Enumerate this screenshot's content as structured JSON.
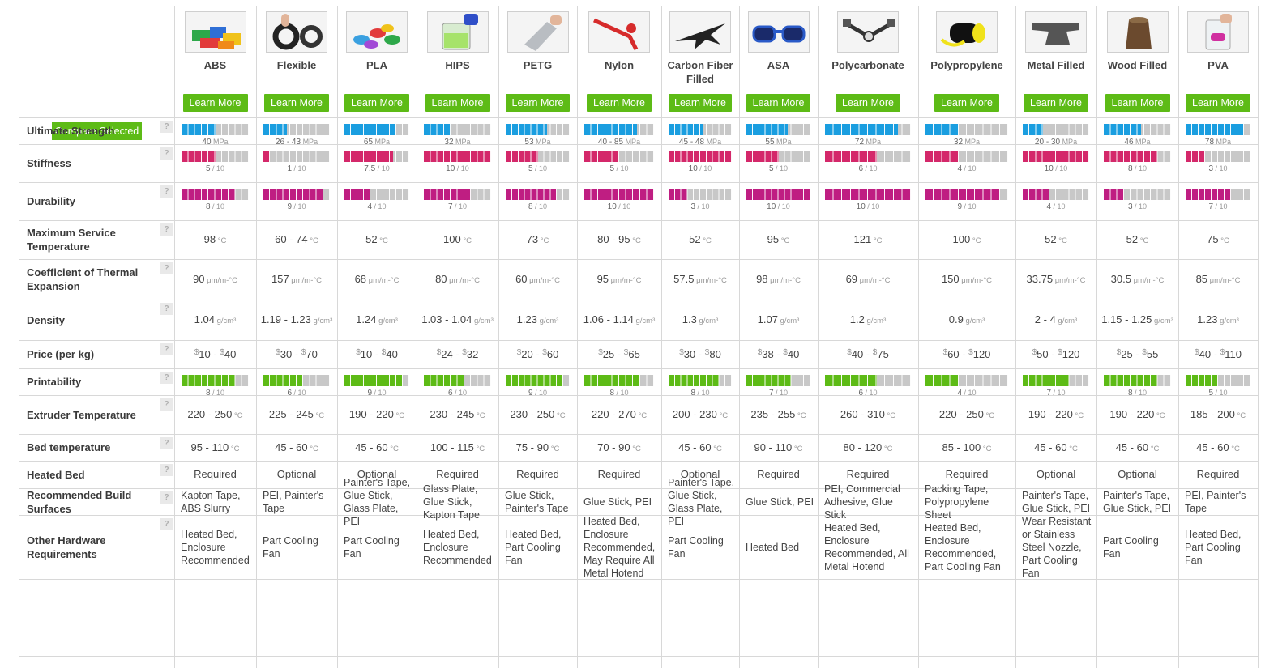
{
  "compare_label": "Compare Selected",
  "learn_more_label": "Learn More",
  "help_glyph": "?",
  "colors": {
    "accent_green": "#5dbb16",
    "strength": "#1a9ee0",
    "stiffness": "#d4286a",
    "durability": "#bf1e82",
    "printability": "#5dbb16",
    "empty": "#c8c8c8"
  },
  "units": {
    "mpa": "MPa",
    "temp": "°C",
    "cte": "μm/m-°C",
    "density": "g/cm³",
    "currency": "$"
  },
  "rows": {
    "strength": "Ultimate Strength",
    "stiffness": "Stiffness",
    "durability": "Durability",
    "max_temp": "Maximum Service Temperature",
    "cte": "Coefficient of Thermal Expansion",
    "density": "Density",
    "price": "Price (per kg)",
    "printability": "Printability",
    "extruder": "Extruder Temperature",
    "bed_temp": "Bed temperature",
    "heated_bed": "Heated Bed",
    "surfaces": "Recommended Build Surfaces",
    "hardware": "Other Hardware Requirements"
  },
  "materials": [
    {
      "name": "ABS",
      "image": "lego-bricks-photo",
      "strength": {
        "label": "40",
        "level": 0.5
      },
      "stiffness": {
        "label": "5",
        "level": 0.5
      },
      "durability": {
        "label": "8",
        "level": 0.8
      },
      "max_temp": "98",
      "cte": "90",
      "density": "1.04",
      "price": {
        "lo": "10",
        "hi": "40"
      },
      "printability": {
        "label": "8",
        "level": 0.8
      },
      "extruder": "220 - 250",
      "bed_temp": "95 - 110",
      "heated_bed": "Required",
      "surfaces": "Kapton Tape, ABS Slurry",
      "hardware": "Heated Bed, Enclosure Recommended"
    },
    {
      "name": "Flexible",
      "image": "flexible-ring-photo",
      "strength": {
        "label": "26 - 43",
        "level": 0.35
      },
      "stiffness": {
        "label": "1",
        "level": 0.1
      },
      "durability": {
        "label": "9",
        "level": 0.9
      },
      "max_temp": "60 - 74",
      "cte": "157",
      "density": "1.19 - 1.23",
      "price": {
        "lo": "30",
        "hi": "70"
      },
      "printability": {
        "label": "6",
        "level": 0.6
      },
      "extruder": "225 - 245",
      "bed_temp": "45 - 60",
      "heated_bed": "Optional",
      "surfaces": "PEI, Painter's Tape",
      "hardware": "Part Cooling Fan"
    },
    {
      "name": "PLA",
      "image": "pla-boats-photo",
      "strength": {
        "label": "65",
        "level": 0.8
      },
      "stiffness": {
        "label": "7.5",
        "level": 0.75
      },
      "durability": {
        "label": "4",
        "level": 0.4
      },
      "max_temp": "52",
      "cte": "68",
      "density": "1.24",
      "price": {
        "lo": "10",
        "hi": "40"
      },
      "printability": {
        "label": "9",
        "level": 0.9
      },
      "extruder": "190 - 220",
      "bed_temp": "45 - 60",
      "heated_bed": "Optional",
      "surfaces": "Painter's Tape, Glue Stick, Glass Plate, PEI",
      "hardware": "Part Cooling Fan"
    },
    {
      "name": "HIPS",
      "image": "hips-beaker-photo",
      "strength": {
        "label": "32",
        "level": 0.4
      },
      "stiffness": {
        "label": "10",
        "level": 1.0
      },
      "durability": {
        "label": "7",
        "level": 0.7
      },
      "max_temp": "100",
      "cte": "80",
      "density": "1.03 - 1.04",
      "price": {
        "lo": "24",
        "hi": "32"
      },
      "printability": {
        "label": "6",
        "level": 0.6
      },
      "extruder": "230 - 245",
      "bed_temp": "100 - 115",
      "heated_bed": "Required",
      "surfaces": "Glass Plate, Glue Stick, Kapton Tape",
      "hardware": "Heated Bed, Enclosure Recommended"
    },
    {
      "name": "PETG",
      "image": "petg-bottle-photo",
      "strength": {
        "label": "53",
        "level": 0.65
      },
      "stiffness": {
        "label": "5",
        "level": 0.5
      },
      "durability": {
        "label": "8",
        "level": 0.8
      },
      "max_temp": "73",
      "cte": "60",
      "density": "1.23",
      "price": {
        "lo": "20",
        "hi": "60"
      },
      "printability": {
        "label": "9",
        "level": 0.9
      },
      "extruder": "230 - 250",
      "bed_temp": "75 - 90",
      "heated_bed": "Required",
      "surfaces": "Glue Stick, Painter's Tape",
      "hardware": "Heated Bed, Part Cooling Fan"
    },
    {
      "name": "Nylon",
      "image": "nylon-clip-photo",
      "strength": {
        "label": "40 - 85",
        "level": 0.75
      },
      "stiffness": {
        "label": "5",
        "level": 0.5
      },
      "durability": {
        "label": "10",
        "level": 1.0
      },
      "max_temp": "80 - 95",
      "cte": "95",
      "density": "1.06 - 1.14",
      "price": {
        "lo": "25",
        "hi": "65"
      },
      "printability": {
        "label": "8",
        "level": 0.8
      },
      "extruder": "220 - 270",
      "bed_temp": "70 - 90",
      "heated_bed": "Required",
      "surfaces": "Glue Stick, PEI",
      "hardware": "Heated Bed, Enclosure Recommended, May Require All Metal Hotend"
    },
    {
      "name": "Carbon Fiber Filled",
      "image": "carbon-jet-photo",
      "strength": {
        "label": "45 - 48",
        "level": 0.55
      },
      "stiffness": {
        "label": "10",
        "level": 1.0
      },
      "durability": {
        "label": "3",
        "level": 0.3
      },
      "max_temp": "52",
      "cte": "57.5",
      "density": "1.3",
      "price": {
        "lo": "30",
        "hi": "80"
      },
      "printability": {
        "label": "8",
        "level": 0.8
      },
      "extruder": "200 - 230",
      "bed_temp": "45 - 60",
      "heated_bed": "Optional",
      "surfaces": "Painter's Tape, Glue Stick, Glass Plate, PEI",
      "hardware": "Part Cooling Fan"
    },
    {
      "name": "ASA",
      "image": "asa-sunglasses-photo",
      "strength": {
        "label": "55",
        "level": 0.65
      },
      "stiffness": {
        "label": "5",
        "level": 0.5
      },
      "durability": {
        "label": "10",
        "level": 1.0
      },
      "max_temp": "95",
      "cte": "98",
      "density": "1.07",
      "price": {
        "lo": "38",
        "hi": "40"
      },
      "printability": {
        "label": "7",
        "level": 0.7
      },
      "extruder": "235 - 255",
      "bed_temp": "90 - 110",
      "heated_bed": "Required",
      "surfaces": "Glue Stick, PEI",
      "hardware": "Heated Bed"
    },
    {
      "name": "Polycarbonate",
      "image": "polycarbonate-clamp-photo",
      "strength": {
        "label": "72",
        "level": 0.85
      },
      "stiffness": {
        "label": "6",
        "level": 0.6
      },
      "durability": {
        "label": "10",
        "level": 1.0
      },
      "max_temp": "121",
      "cte": "69",
      "density": "1.2",
      "price": {
        "lo": "40",
        "hi": "75"
      },
      "printability": {
        "label": "6",
        "level": 0.6
      },
      "extruder": "260 - 310",
      "bed_temp": "80 - 120",
      "heated_bed": "Required",
      "surfaces": "PEI, Commercial Adhesive, Glue Stick",
      "hardware": "Heated Bed, Enclosure Recommended, All Metal Hotend"
    },
    {
      "name": "Polypropylene",
      "image": "polypropylene-tube-photo",
      "strength": {
        "label": "32",
        "level": 0.4
      },
      "stiffness": {
        "label": "4",
        "level": 0.4
      },
      "durability": {
        "label": "9",
        "level": 0.9
      },
      "max_temp": "100",
      "cte": "150",
      "density": "0.9",
      "price": {
        "lo": "60",
        "hi": "120"
      },
      "printability": {
        "label": "4",
        "level": 0.4
      },
      "extruder": "220 - 250",
      "bed_temp": "85 - 100",
      "heated_bed": "Required",
      "surfaces": "Packing Tape, Polypropylene Sheet",
      "hardware": "Heated Bed, Enclosure Recommended, Part Cooling Fan"
    },
    {
      "name": "Metal Filled",
      "image": "metal-anvil-photo",
      "strength": {
        "label": "20 - 30",
        "level": 0.3
      },
      "stiffness": {
        "label": "10",
        "level": 1.0
      },
      "durability": {
        "label": "4",
        "level": 0.4
      },
      "max_temp": "52",
      "cte": "33.75",
      "density": "2 - 4",
      "price": {
        "lo": "50",
        "hi": "120"
      },
      "printability": {
        "label": "7",
        "level": 0.7
      },
      "extruder": "190 - 220",
      "bed_temp": "45 - 60",
      "heated_bed": "Optional",
      "surfaces": "Painter's Tape, Glue Stick, PEI",
      "hardware": "Wear Resistant or Stainless Steel Nozzle, Part Cooling Fan"
    },
    {
      "name": "Wood Filled",
      "image": "wood-stump-photo",
      "strength": {
        "label": "46",
        "level": 0.55
      },
      "stiffness": {
        "label": "8",
        "level": 0.8
      },
      "durability": {
        "label": "3",
        "level": 0.3
      },
      "max_temp": "52",
      "cte": "30.5",
      "density": "1.15 - 1.25",
      "price": {
        "lo": "25",
        "hi": "55"
      },
      "printability": {
        "label": "8",
        "level": 0.8
      },
      "extruder": "190 - 220",
      "bed_temp": "45 - 60",
      "heated_bed": "Optional",
      "surfaces": "Painter's Tape, Glue Stick, PEI",
      "hardware": "Part Cooling Fan"
    },
    {
      "name": "PVA",
      "image": "pva-glass-photo",
      "strength": {
        "label": "78",
        "level": 0.9
      },
      "stiffness": {
        "label": "3",
        "level": 0.3
      },
      "durability": {
        "label": "7",
        "level": 0.7
      },
      "max_temp": "75",
      "cte": "85",
      "density": "1.23",
      "price": {
        "lo": "40",
        "hi": "110"
      },
      "printability": {
        "label": "5",
        "level": 0.5
      },
      "extruder": "185 - 200",
      "bed_temp": "45 - 60",
      "heated_bed": "Required",
      "surfaces": "PEI, Painter's Tape",
      "hardware": "Heated Bed, Part Cooling Fan"
    }
  ]
}
